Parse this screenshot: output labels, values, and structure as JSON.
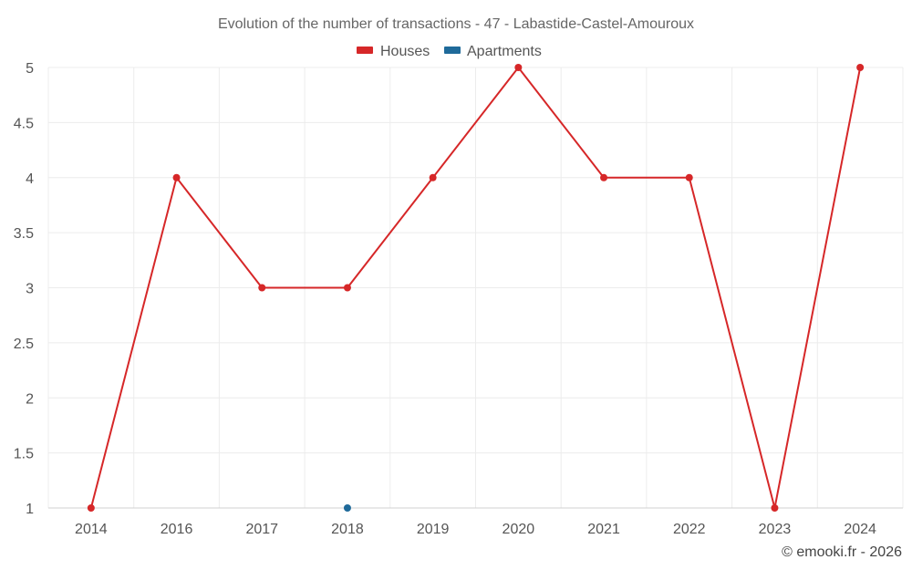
{
  "chart_data": {
    "type": "line",
    "title": "Evolution of the number of transactions - 47 - Labastide-Castel-Amouroux",
    "categories": [
      "2014",
      "2016",
      "2017",
      "2018",
      "2019",
      "2020",
      "2021",
      "2022",
      "2023",
      "2024"
    ],
    "series": [
      {
        "name": "Houses",
        "color": "#d62728",
        "values": [
          1,
          4,
          3,
          3,
          4,
          5,
          4,
          4,
          1,
          5
        ]
      },
      {
        "name": "Apartments",
        "color": "#1f6a9a",
        "values": [
          null,
          null,
          null,
          1,
          null,
          null,
          null,
          null,
          null,
          null
        ]
      }
    ],
    "ylim": [
      1,
      5
    ],
    "yticks": [
      "1",
      "1.5",
      "2",
      "2.5",
      "3",
      "3.5",
      "4",
      "4.5",
      "5"
    ],
    "grid": true,
    "legend_position": "top-center",
    "xlabel": "",
    "ylabel": ""
  },
  "credit": "© emooki.fr - 2026"
}
